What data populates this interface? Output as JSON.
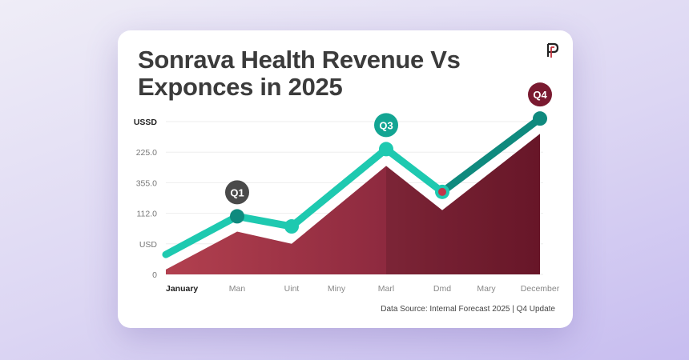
{
  "header": {
    "title_line1": "Sonrava Health Revenue Vs",
    "title_line2": "Exponces in 2025",
    "logo_text": "P"
  },
  "footer": {
    "source": "Data Source: Internal Forecast 2025 | Q4 Update"
  },
  "colors": {
    "line": "#1ec9b0",
    "line_dark": "#0f8a7e",
    "area_light": "#b2404f",
    "area_dark": "#761a2e",
    "q1": "#4a4a4a",
    "q3": "#13a593",
    "q4": "#7a1a30"
  },
  "chart_data": {
    "type": "area",
    "ylabel": "USSD",
    "y_tick_labels": [
      "0",
      "USD",
      "112.0",
      "355.0",
      "225.0"
    ],
    "ylim": [
      0,
      5
    ],
    "grid": true,
    "categories": [
      "January",
      "Man",
      "Uint",
      "Miny",
      "Marl",
      "Dmd",
      "Mary",
      "December"
    ],
    "series": [
      {
        "type": "line",
        "points": [
          {
            "x": "January",
            "y": 0.65
          },
          {
            "x": "Man",
            "y": 1.9
          },
          {
            "x": "Uint",
            "y": 1.57
          },
          {
            "x": "Marl",
            "y": 4.1
          },
          {
            "x": "Dmd",
            "y": 2.7
          },
          {
            "x": "December",
            "y": 5.1
          }
        ]
      },
      {
        "type": "area",
        "points": [
          {
            "x": "January",
            "y": 0.16
          },
          {
            "x": "Man",
            "y": 1.4
          },
          {
            "x": "Uint",
            "y": 1.0
          },
          {
            "x": "Marl",
            "y": 3.55
          },
          {
            "x": "Dmd",
            "y": 2.1
          },
          {
            "x": "December",
            "y": 4.6
          }
        ]
      }
    ],
    "annotations": [
      {
        "label": "Q1",
        "x": "Man"
      },
      {
        "label": "Q3",
        "x": "Marl"
      },
      {
        "label": "Q4",
        "x": "December"
      }
    ]
  }
}
